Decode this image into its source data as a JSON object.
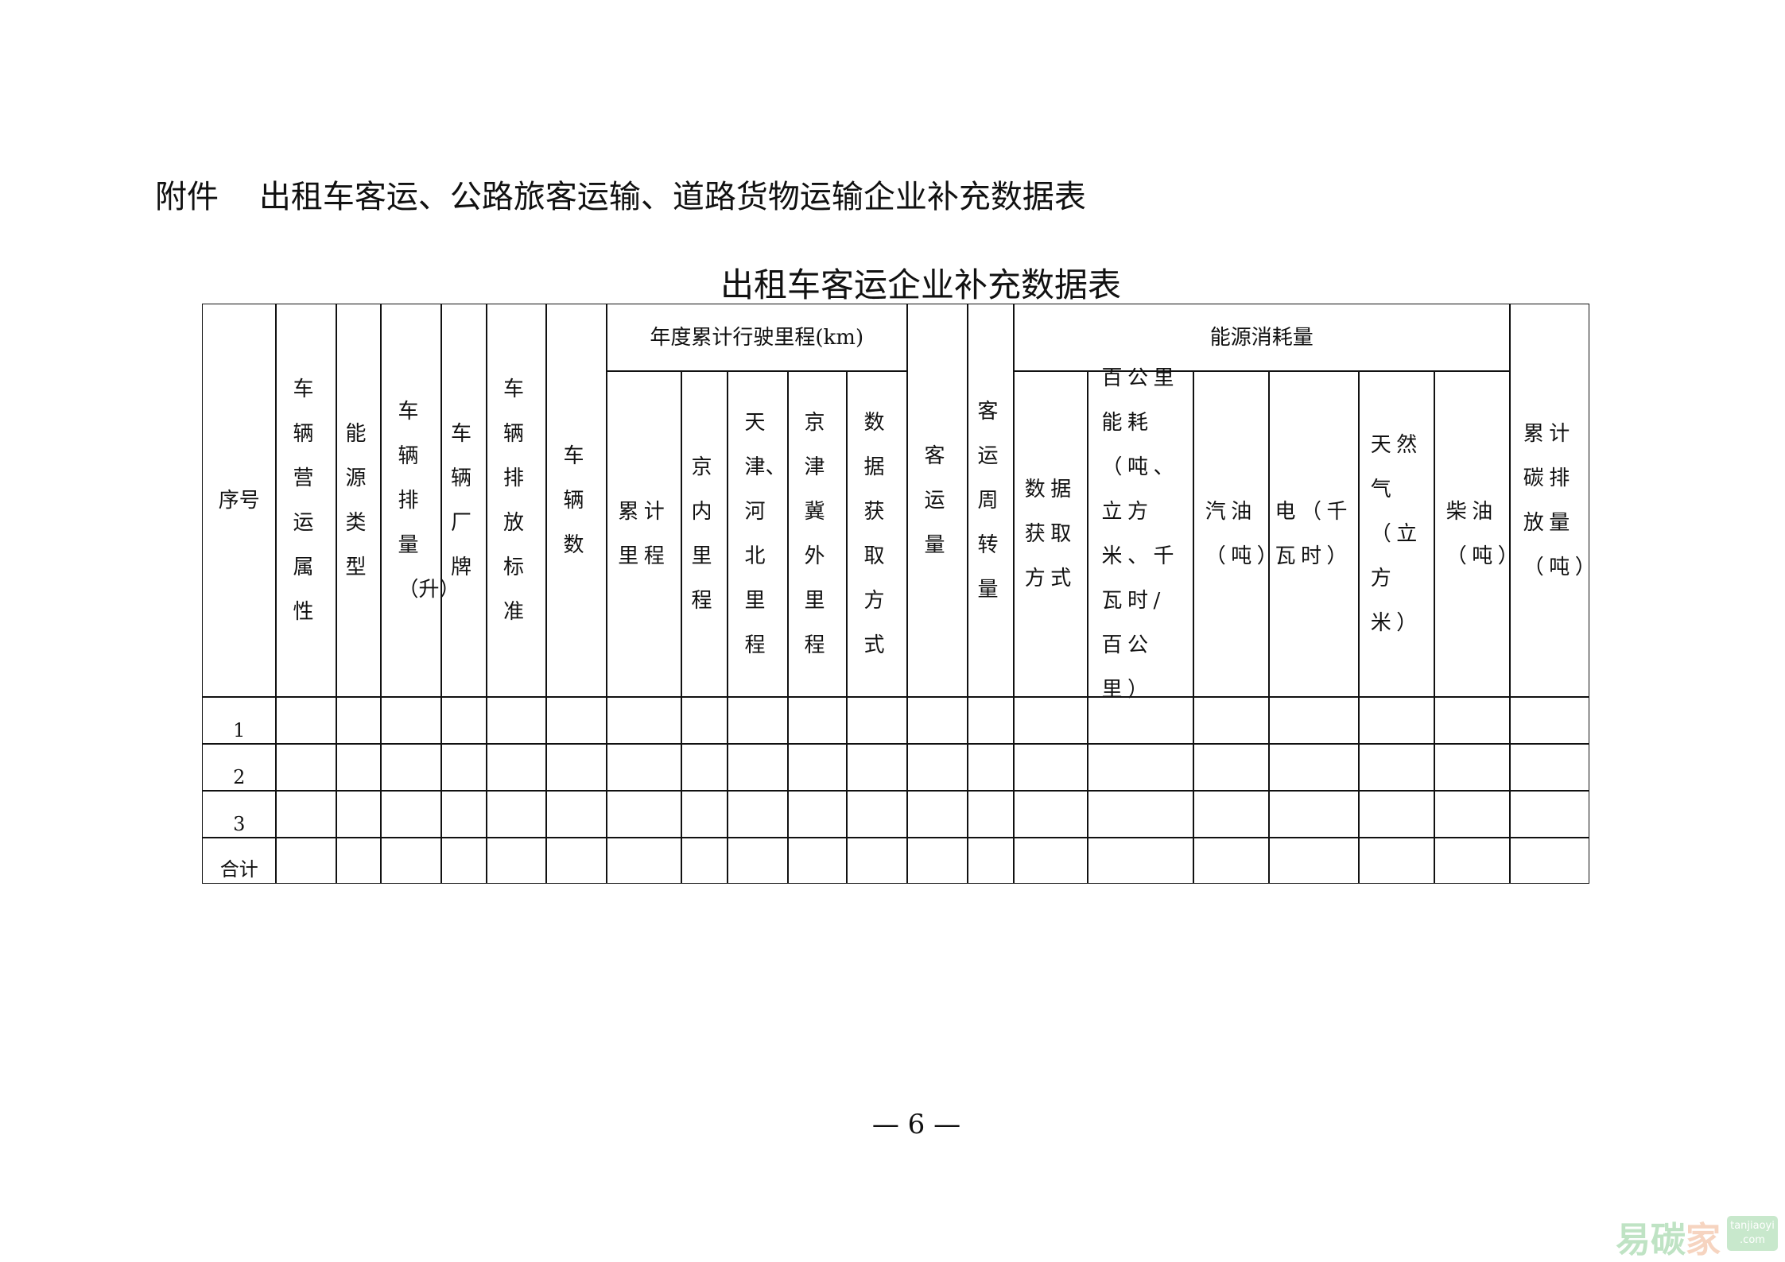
{
  "attachment_title": "附件    出租车客运、公路旅客运输、道路货物运输企业补充数据表",
  "table_title": "出租车客运企业补充数据表",
  "table": {
    "headers": {
      "seq": "序号",
      "operation_attr": "车辆营运属性",
      "energy_type": "能源类型",
      "displacement": "车辆排量（升）",
      "brand": "车辆厂牌",
      "emission_std": "车辆排放标准",
      "vehicle_count": "车辆数",
      "mileage_group": "年度累计行驶里程(km)",
      "mileage_total": "累计里程",
      "mileage_beijing": "京内里程",
      "mileage_tianjin_hebei": "天津、河北里程",
      "mileage_outside": "京津冀外里程",
      "mileage_data_method": "数据获取方式",
      "passenger_volume": "客运量",
      "passenger_turnover": "客运周转量",
      "energy_group": "能源消耗量",
      "energy_data_method": "数据获取方式",
      "energy_per_100km": "百公里能耗（吨、立方米、千瓦时/百公里）",
      "gasoline": "汽油（吨）",
      "electricity": "电（千瓦时）",
      "natural_gas": "天然气（立方米）",
      "diesel": "柴油（吨）",
      "carbon": "累计碳排放量（吨）"
    },
    "rows": [
      "1",
      "2",
      "3",
      "合计"
    ]
  },
  "page_number": "— 6 —",
  "watermark": {
    "cn": [
      "易",
      "碳",
      "家"
    ],
    "en": "tanjiaoyi",
    "en2": ".com",
    "colors": {
      "green": "#bfe3c4",
      "peach": "#f6d4c0"
    }
  }
}
